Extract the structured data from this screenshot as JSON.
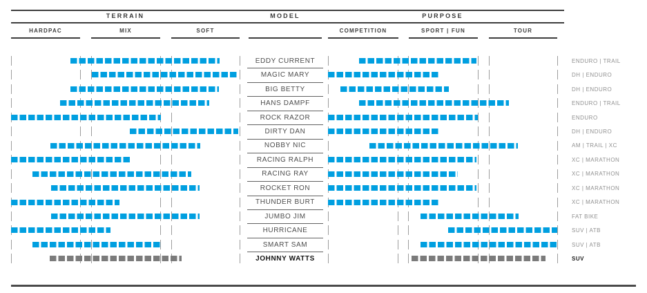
{
  "header": {
    "groups": [
      {
        "label": "TERRAIN"
      },
      {
        "label": "MODEL"
      },
      {
        "label": "PURPOSE"
      }
    ]
  },
  "colors": {
    "bar_blue": "#009FE0",
    "bar_gray": "#7B7B7B",
    "rule": "#3D3D3D",
    "tick": "#9C9C9C"
  },
  "chart_data": {
    "type": "range-bar-matrix",
    "title": "",
    "axes": {
      "terrain": {
        "label": "TERRAIN",
        "columns": [
          "HARDPAC",
          "MIX",
          "SOFT"
        ],
        "column_boundaries_pct": [
          0,
          30.3,
          35.1,
          65.3,
          70.2,
          100
        ]
      },
      "purpose": {
        "label": "PURPOSE",
        "columns": [
          "COMPETITION",
          "SPORT | FUN",
          "TOUR"
        ],
        "column_boundaries_pct": [
          0,
          30.7,
          35.2,
          65.4,
          70.2,
          100
        ]
      }
    },
    "model_column_label": "MODEL",
    "rows": [
      {
        "model": "EDDY CURRENT",
        "terrain_pct": [
          26.0,
          91.2
        ],
        "purpose_pct": [
          13.6,
          64.8
        ],
        "category": "ENDURO | TRAIL",
        "highlight": false
      },
      {
        "model": "MAGIC MARY",
        "terrain_pct": [
          35.3,
          99.4
        ],
        "purpose_pct": [
          0.0,
          48.2
        ],
        "category": "DH | ENDURO",
        "highlight": false
      },
      {
        "model": "BIG BETTY",
        "terrain_pct": [
          26.0,
          90.9
        ],
        "purpose_pct": [
          5.4,
          52.7
        ],
        "category": "DH | ENDURO",
        "highlight": false
      },
      {
        "model": "HANS DAMPF",
        "terrain_pct": [
          21.5,
          86.7
        ],
        "purpose_pct": [
          13.6,
          78.9
        ],
        "category": "ENDURO | TRAIL",
        "highlight": false
      },
      {
        "model": "ROCK RAZOR",
        "terrain_pct": [
          0.0,
          65.6
        ],
        "purpose_pct": [
          0.0,
          65.4
        ],
        "category": "ENDURO",
        "highlight": false
      },
      {
        "model": "DIRTY DAN",
        "terrain_pct": [
          52.0,
          99.4
        ],
        "purpose_pct": [
          0.0,
          48.2
        ],
        "category": "DH | ENDURO",
        "highlight": false
      },
      {
        "model": "NOBBY NIC",
        "terrain_pct": [
          17.2,
          82.8
        ],
        "purpose_pct": [
          18.1,
          82.8
        ],
        "category": "AM | TRAIL | XC",
        "highlight": false
      },
      {
        "model": "RACING RALPH",
        "terrain_pct": [
          0.0,
          52.0
        ],
        "purpose_pct": [
          0.0,
          64.8
        ],
        "category": "XC | MARATHON",
        "highlight": false
      },
      {
        "model": "RACING RAY",
        "terrain_pct": [
          9.4,
          78.9
        ],
        "purpose_pct": [
          0.0,
          56.6
        ],
        "category": "XC | MARATHON",
        "highlight": false
      },
      {
        "model": "ROCKET RON",
        "terrain_pct": [
          17.5,
          82.5
        ],
        "purpose_pct": [
          0.0,
          64.8
        ],
        "category": "XC | MARATHON",
        "highlight": false
      },
      {
        "model": "THUNDER BURT",
        "terrain_pct": [
          0.0,
          47.4
        ],
        "purpose_pct": [
          0.0,
          48.5
        ],
        "category": "XC | MARATHON",
        "highlight": false
      },
      {
        "model": "JUMBO JIM",
        "terrain_pct": [
          17.5,
          82.5
        ],
        "purpose_pct": [
          40.4,
          83.1
        ],
        "category": "FAT BIKE",
        "highlight": false
      },
      {
        "model": "HURRICANE",
        "terrain_pct": [
          0.0,
          43.5
        ],
        "purpose_pct": [
          52.4,
          100.0
        ],
        "category": "SUV | ATB",
        "highlight": false
      },
      {
        "model": "SMART SAM",
        "terrain_pct": [
          9.4,
          65.3
        ],
        "purpose_pct": [
          40.4,
          100.0
        ],
        "category": "SUV | ATB",
        "highlight": false
      },
      {
        "model": "JOHNNY WATTS",
        "terrain_pct": [
          16.9,
          74.6
        ],
        "purpose_pct": [
          36.4,
          94.9
        ],
        "category": "SUV",
        "highlight": true
      }
    ]
  }
}
